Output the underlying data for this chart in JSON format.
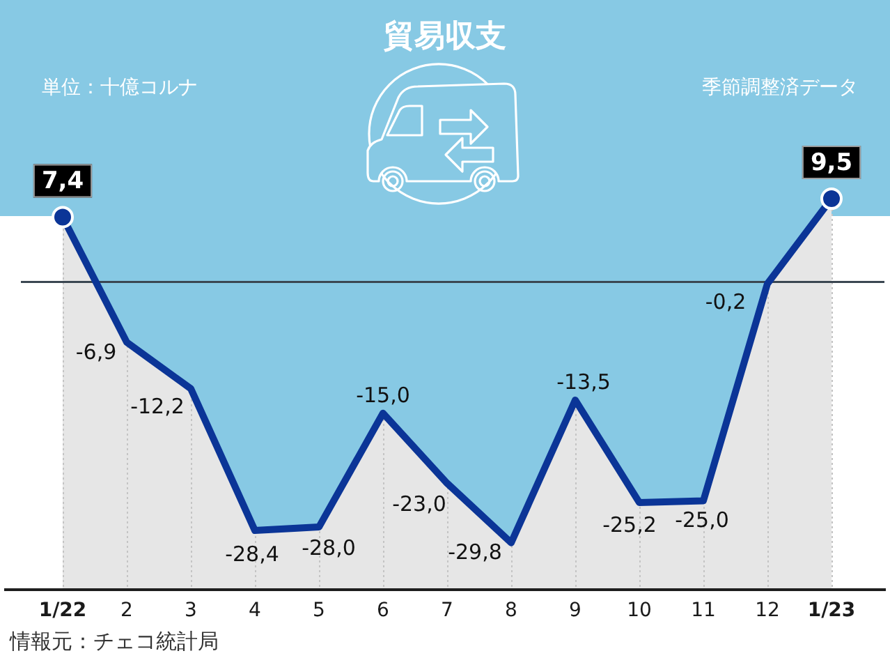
{
  "chart_data": {
    "type": "area",
    "title": "貿易収支",
    "subtitle": "単位：十億コルナ",
    "annotations": [
      "季節調整済データ",
      "情報元：チェコ統計局"
    ],
    "categories": [
      "1/22",
      "2",
      "3",
      "4",
      "5",
      "6",
      "7",
      "8",
      "9",
      "10",
      "11",
      "12",
      "1/23"
    ],
    "series": [
      {
        "color": "#0b3597",
        "marker": "none",
        "values": [
          7.4,
          -6.9,
          -12.2,
          -28.4,
          -28.0,
          -15.0,
          -23.0,
          -29.8,
          -13.5,
          -25.2,
          -25.0,
          -0.2,
          9.5
        ],
        "value_labels": [
          "7,4",
          "-6,9",
          "-12,2",
          "-28,4",
          "-28,0",
          "-15,0",
          "-23,0",
          "-29,8",
          "-13,5",
          "-25,2",
          "-25,0",
          "-0,2",
          "9,5"
        ]
      },
      {
        "type": "scatter",
        "color": "#0b3597",
        "marker": "circle",
        "x": [
          "1/22",
          "1/23"
        ],
        "values": [
          7.4,
          9.5
        ]
      }
    ],
    "tick_labels": "x",
    "grid": "x",
    "legend": false,
    "ref_lines": [
      {
        "axis": "y",
        "value": 0,
        "color": "#3b4752"
      }
    ]
  }
}
